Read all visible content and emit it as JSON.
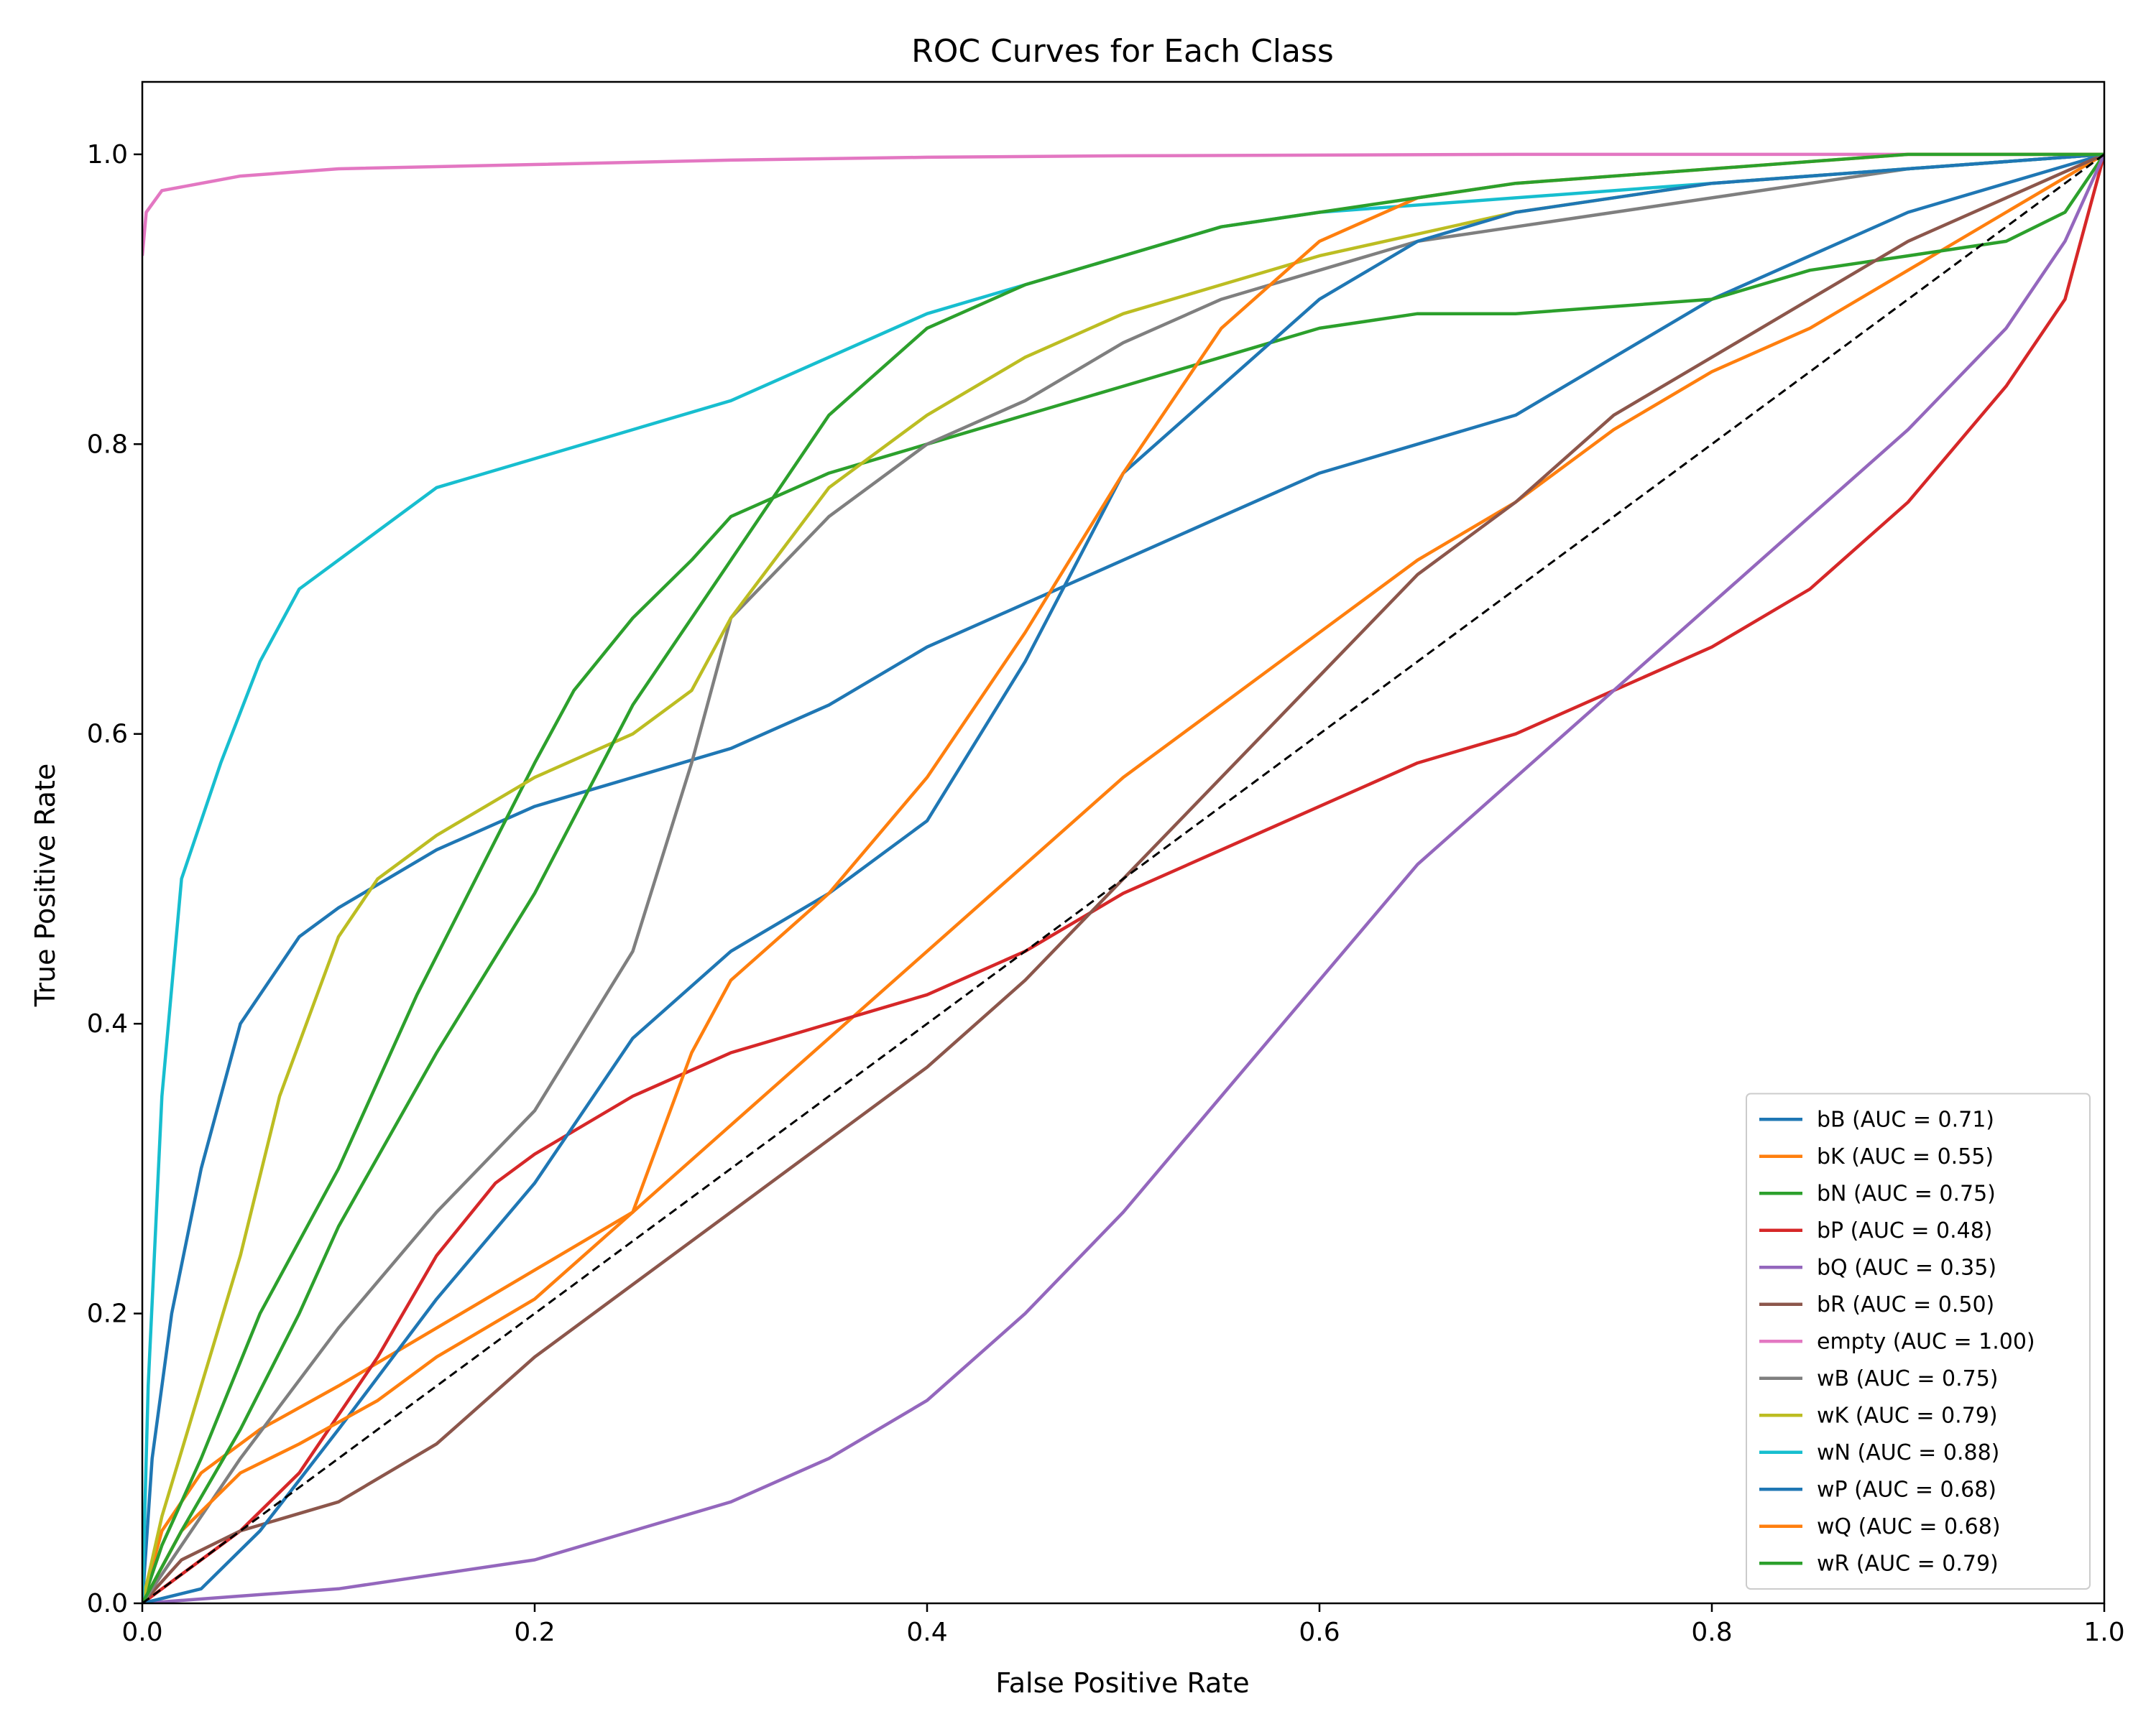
{
  "chart_data": {
    "type": "line",
    "title": "ROC Curves for Each Class",
    "xlabel": "False Positive Rate",
    "ylabel": "True Positive Rate",
    "xlim": [
      0.0,
      1.0
    ],
    "ylim": [
      0.0,
      1.05
    ],
    "x_ticks": [
      "0.0",
      "0.2",
      "0.4",
      "0.6",
      "0.8",
      "1.0"
    ],
    "y_ticks": [
      "0.0",
      "0.2",
      "0.4",
      "0.6",
      "0.8",
      "1.0"
    ],
    "grid": false,
    "legend_position": "bottom-right",
    "reference_line": {
      "style": "dashed",
      "color": "#000000",
      "points": [
        [
          0,
          0
        ],
        [
          1,
          1
        ]
      ]
    },
    "series": [
      {
        "name": "bB (AUC = 0.71)",
        "color": "#1f77b4",
        "points": [
          [
            0,
            0
          ],
          [
            0.005,
            0.1
          ],
          [
            0.015,
            0.2
          ],
          [
            0.03,
            0.3
          ],
          [
            0.05,
            0.4
          ],
          [
            0.08,
            0.46
          ],
          [
            0.1,
            0.48
          ],
          [
            0.15,
            0.52
          ],
          [
            0.2,
            0.55
          ],
          [
            0.3,
            0.59
          ],
          [
            0.35,
            0.62
          ],
          [
            0.4,
            0.66
          ],
          [
            0.45,
            0.69
          ],
          [
            0.5,
            0.72
          ],
          [
            0.55,
            0.75
          ],
          [
            0.6,
            0.78
          ],
          [
            0.65,
            0.8
          ],
          [
            0.7,
            0.82
          ],
          [
            0.75,
            0.86
          ],
          [
            0.8,
            0.9
          ],
          [
            0.85,
            0.93
          ],
          [
            0.9,
            0.96
          ],
          [
            0.95,
            0.98
          ],
          [
            1,
            1
          ]
        ]
      },
      {
        "name": "bK (AUC = 0.55)",
        "color": "#ff7f0e",
        "points": [
          [
            0,
            0
          ],
          [
            0.01,
            0.05
          ],
          [
            0.03,
            0.09
          ],
          [
            0.06,
            0.12
          ],
          [
            0.1,
            0.15
          ],
          [
            0.15,
            0.19
          ],
          [
            0.2,
            0.23
          ],
          [
            0.25,
            0.27
          ],
          [
            0.3,
            0.33
          ],
          [
            0.35,
            0.39
          ],
          [
            0.4,
            0.45
          ],
          [
            0.45,
            0.51
          ],
          [
            0.5,
            0.57
          ],
          [
            0.55,
            0.62
          ],
          [
            0.6,
            0.67
          ],
          [
            0.65,
            0.72
          ],
          [
            0.7,
            0.76
          ],
          [
            0.75,
            0.81
          ],
          [
            0.8,
            0.85
          ],
          [
            0.85,
            0.88
          ],
          [
            0.9,
            0.92
          ],
          [
            0.95,
            0.96
          ],
          [
            1,
            1
          ]
        ]
      },
      {
        "name": "bN (AUC = 0.75)",
        "color": "#2ca02c",
        "points": [
          [
            0,
            0
          ],
          [
            0.01,
            0.04
          ],
          [
            0.03,
            0.1
          ],
          [
            0.06,
            0.2
          ],
          [
            0.1,
            0.3
          ],
          [
            0.14,
            0.42
          ],
          [
            0.17,
            0.5
          ],
          [
            0.2,
            0.58
          ],
          [
            0.22,
            0.63
          ],
          [
            0.25,
            0.68
          ],
          [
            0.28,
            0.72
          ],
          [
            0.3,
            0.75
          ],
          [
            0.35,
            0.78
          ],
          [
            0.4,
            0.8
          ],
          [
            0.45,
            0.82
          ],
          [
            0.5,
            0.84
          ],
          [
            0.55,
            0.86
          ],
          [
            0.6,
            0.88
          ],
          [
            0.65,
            0.89
          ],
          [
            0.7,
            0.89
          ],
          [
            0.8,
            0.9
          ],
          [
            0.85,
            0.92
          ],
          [
            0.9,
            0.93
          ],
          [
            0.95,
            0.94
          ],
          [
            0.98,
            0.96
          ],
          [
            1,
            1
          ]
        ]
      },
      {
        "name": "bP (AUC = 0.48)",
        "color": "#d62728",
        "points": [
          [
            0,
            0
          ],
          [
            0.02,
            0.02
          ],
          [
            0.05,
            0.05
          ],
          [
            0.08,
            0.09
          ],
          [
            0.1,
            0.13
          ],
          [
            0.12,
            0.17
          ],
          [
            0.15,
            0.24
          ],
          [
            0.18,
            0.29
          ],
          [
            0.2,
            0.31
          ],
          [
            0.25,
            0.35
          ],
          [
            0.3,
            0.38
          ],
          [
            0.35,
            0.4
          ],
          [
            0.4,
            0.42
          ],
          [
            0.45,
            0.45
          ],
          [
            0.5,
            0.49
          ],
          [
            0.55,
            0.52
          ],
          [
            0.6,
            0.55
          ],
          [
            0.65,
            0.58
          ],
          [
            0.7,
            0.6
          ],
          [
            0.75,
            0.63
          ],
          [
            0.8,
            0.66
          ],
          [
            0.85,
            0.7
          ],
          [
            0.9,
            0.76
          ],
          [
            0.95,
            0.84
          ],
          [
            0.98,
            0.9
          ],
          [
            1,
            1
          ]
        ]
      },
      {
        "name": "bQ (AUC = 0.35)",
        "color": "#9467bd",
        "points": [
          [
            0,
            0
          ],
          [
            0.05,
            0.005
          ],
          [
            0.1,
            0.01
          ],
          [
            0.15,
            0.02
          ],
          [
            0.2,
            0.03
          ],
          [
            0.25,
            0.05
          ],
          [
            0.3,
            0.07
          ],
          [
            0.35,
            0.1
          ],
          [
            0.4,
            0.14
          ],
          [
            0.45,
            0.2
          ],
          [
            0.5,
            0.27
          ],
          [
            0.55,
            0.35
          ],
          [
            0.6,
            0.43
          ],
          [
            0.65,
            0.51
          ],
          [
            0.7,
            0.57
          ],
          [
            0.75,
            0.63
          ],
          [
            0.8,
            0.69
          ],
          [
            0.85,
            0.75
          ],
          [
            0.9,
            0.81
          ],
          [
            0.95,
            0.88
          ],
          [
            0.98,
            0.94
          ],
          [
            1,
            1
          ]
        ]
      },
      {
        "name": "bR (AUC = 0.50)",
        "color": "#8c564b",
        "points": [
          [
            0,
            0
          ],
          [
            0.02,
            0.03
          ],
          [
            0.05,
            0.05
          ],
          [
            0.1,
            0.07
          ],
          [
            0.15,
            0.11
          ],
          [
            0.2,
            0.17
          ],
          [
            0.25,
            0.22
          ],
          [
            0.3,
            0.27
          ],
          [
            0.35,
            0.32
          ],
          [
            0.4,
            0.37
          ],
          [
            0.45,
            0.43
          ],
          [
            0.5,
            0.5
          ],
          [
            0.55,
            0.57
          ],
          [
            0.6,
            0.64
          ],
          [
            0.65,
            0.71
          ],
          [
            0.7,
            0.76
          ],
          [
            0.75,
            0.82
          ],
          [
            0.8,
            0.86
          ],
          [
            0.85,
            0.9
          ],
          [
            0.9,
            0.94
          ],
          [
            0.95,
            0.97
          ],
          [
            1,
            1
          ]
        ]
      },
      {
        "name": "empty (AUC = 1.00)",
        "color": "#e377c2",
        "points": [
          [
            0,
            0.93
          ],
          [
            0.002,
            0.96
          ],
          [
            0.01,
            0.975
          ],
          [
            0.05,
            0.985
          ],
          [
            0.1,
            0.99
          ],
          [
            0.2,
            0.993
          ],
          [
            0.3,
            0.996
          ],
          [
            0.4,
            0.998
          ],
          [
            0.5,
            0.999
          ],
          [
            0.7,
            1
          ],
          [
            1,
            1
          ]
        ]
      },
      {
        "name": "wB (AUC = 0.75)",
        "color": "#7f7f7f",
        "points": [
          [
            0,
            0
          ],
          [
            0.02,
            0.04
          ],
          [
            0.05,
            0.1
          ],
          [
            0.1,
            0.19
          ],
          [
            0.15,
            0.27
          ],
          [
            0.2,
            0.34
          ],
          [
            0.25,
            0.45
          ],
          [
            0.28,
            0.58
          ],
          [
            0.3,
            0.68
          ],
          [
            0.35,
            0.75
          ],
          [
            0.4,
            0.8
          ],
          [
            0.45,
            0.83
          ],
          [
            0.5,
            0.87
          ],
          [
            0.55,
            0.9
          ],
          [
            0.6,
            0.92
          ],
          [
            0.65,
            0.94
          ],
          [
            0.7,
            0.95
          ],
          [
            0.8,
            0.97
          ],
          [
            0.9,
            0.99
          ],
          [
            1,
            1
          ]
        ]
      },
      {
        "name": "wK (AUC = 0.79)",
        "color": "#bcbd22",
        "points": [
          [
            0,
            0
          ],
          [
            0.01,
            0.06
          ],
          [
            0.03,
            0.15
          ],
          [
            0.05,
            0.24
          ],
          [
            0.07,
            0.35
          ],
          [
            0.1,
            0.46
          ],
          [
            0.12,
            0.5
          ],
          [
            0.15,
            0.53
          ],
          [
            0.2,
            0.57
          ],
          [
            0.25,
            0.6
          ],
          [
            0.28,
            0.63
          ],
          [
            0.3,
            0.68
          ],
          [
            0.35,
            0.77
          ],
          [
            0.4,
            0.82
          ],
          [
            0.45,
            0.86
          ],
          [
            0.5,
            0.89
          ],
          [
            0.55,
            0.91
          ],
          [
            0.6,
            0.93
          ],
          [
            0.7,
            0.96
          ],
          [
            0.8,
            0.98
          ],
          [
            0.9,
            0.99
          ],
          [
            1,
            1
          ]
        ]
      },
      {
        "name": "wN (AUC = 0.88)",
        "color": "#17becf",
        "points": [
          [
            0,
            0
          ],
          [
            0.003,
            0.15
          ],
          [
            0.01,
            0.35
          ],
          [
            0.02,
            0.5
          ],
          [
            0.04,
            0.58
          ],
          [
            0.06,
            0.65
          ],
          [
            0.08,
            0.7
          ],
          [
            0.1,
            0.72
          ],
          [
            0.15,
            0.77
          ],
          [
            0.2,
            0.79
          ],
          [
            0.25,
            0.81
          ],
          [
            0.3,
            0.83
          ],
          [
            0.35,
            0.86
          ],
          [
            0.4,
            0.89
          ],
          [
            0.45,
            0.91
          ],
          [
            0.5,
            0.93
          ],
          [
            0.55,
            0.95
          ],
          [
            0.6,
            0.96
          ],
          [
            0.7,
            0.97
          ],
          [
            0.8,
            0.98
          ],
          [
            0.9,
            0.99
          ],
          [
            1,
            1
          ]
        ]
      },
      {
        "name": "wP (AUC = 0.68)",
        "color": "#1f77b4",
        "points": [
          [
            0,
            0
          ],
          [
            0.03,
            0.01
          ],
          [
            0.06,
            0.05
          ],
          [
            0.1,
            0.12
          ],
          [
            0.15,
            0.21
          ],
          [
            0.2,
            0.29
          ],
          [
            0.25,
            0.39
          ],
          [
            0.3,
            0.45
          ],
          [
            0.35,
            0.49
          ],
          [
            0.4,
            0.54
          ],
          [
            0.45,
            0.65
          ],
          [
            0.5,
            0.78
          ],
          [
            0.55,
            0.84
          ],
          [
            0.6,
            0.9
          ],
          [
            0.65,
            0.94
          ],
          [
            0.7,
            0.96
          ],
          [
            0.8,
            0.98
          ],
          [
            0.9,
            0.99
          ],
          [
            1,
            1
          ]
        ]
      },
      {
        "name": "wQ (AUC = 0.68)",
        "color": "#ff7f0e",
        "points": [
          [
            0,
            0
          ],
          [
            0.02,
            0.05
          ],
          [
            0.05,
            0.09
          ],
          [
            0.08,
            0.11
          ],
          [
            0.12,
            0.14
          ],
          [
            0.15,
            0.17
          ],
          [
            0.2,
            0.21
          ],
          [
            0.25,
            0.27
          ],
          [
            0.28,
            0.38
          ],
          [
            0.3,
            0.43
          ],
          [
            0.35,
            0.49
          ],
          [
            0.4,
            0.57
          ],
          [
            0.45,
            0.67
          ],
          [
            0.5,
            0.78
          ],
          [
            0.55,
            0.88
          ],
          [
            0.6,
            0.94
          ],
          [
            0.65,
            0.97
          ],
          [
            0.7,
            0.98
          ],
          [
            0.8,
            0.99
          ],
          [
            0.9,
            1
          ],
          [
            1,
            1
          ]
        ]
      },
      {
        "name": "wR (AUC = 0.79)",
        "color": "#2ca02c",
        "points": [
          [
            0,
            0
          ],
          [
            0.02,
            0.05
          ],
          [
            0.05,
            0.12
          ],
          [
            0.08,
            0.2
          ],
          [
            0.1,
            0.26
          ],
          [
            0.15,
            0.38
          ],
          [
            0.2,
            0.49
          ],
          [
            0.25,
            0.62
          ],
          [
            0.3,
            0.72
          ],
          [
            0.35,
            0.82
          ],
          [
            0.4,
            0.88
          ],
          [
            0.45,
            0.91
          ],
          [
            0.5,
            0.93
          ],
          [
            0.55,
            0.95
          ],
          [
            0.6,
            0.96
          ],
          [
            0.7,
            0.98
          ],
          [
            0.8,
            0.99
          ],
          [
            0.9,
            1
          ],
          [
            1,
            1
          ]
        ]
      }
    ]
  }
}
